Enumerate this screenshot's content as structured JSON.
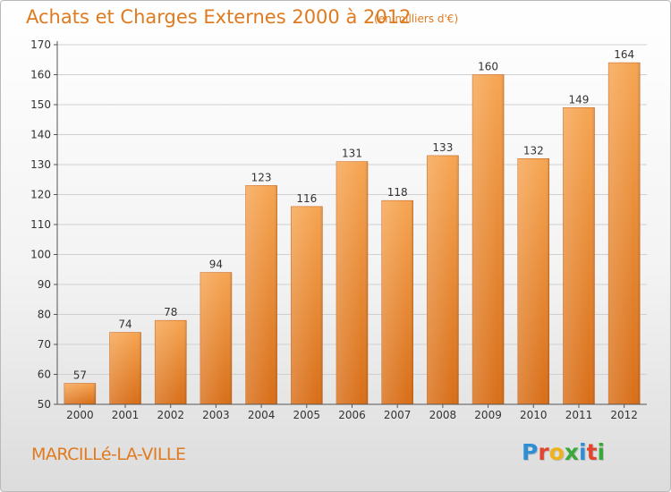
{
  "header": {
    "title": "Achats et Charges Externes 2000 à 2012",
    "subtitle": "(en milliers d'€)"
  },
  "footer": {
    "city": "MARCILLé-LA-VILLE",
    "logo": {
      "text": "Proxiti",
      "letter_colors": [
        "#2e8fd6",
        "#e2452f",
        "#f0b21a",
        "#3aa83a",
        "#2e8fd6",
        "#e2452f",
        "#3aa83a"
      ]
    }
  },
  "colors": {
    "accent": "#e07a1f",
    "bar_top": "#f6a552",
    "bar_bottom": "#d86e18",
    "grid": "#d0d0d0",
    "axis": "#555555"
  },
  "chart_data": {
    "type": "bar",
    "title": "Achats et Charges Externes 2000 à 2012",
    "subtitle": "(en milliers d'€)",
    "xlabel": "",
    "ylabel": "",
    "categories": [
      "2000",
      "2001",
      "2002",
      "2003",
      "2004",
      "2005",
      "2006",
      "2007",
      "2008",
      "2009",
      "2010",
      "2011",
      "2012"
    ],
    "values": [
      57,
      74,
      78,
      94,
      123,
      116,
      131,
      118,
      133,
      160,
      132,
      149,
      164
    ],
    "ylim": [
      50,
      170
    ],
    "yticks": [
      50,
      60,
      70,
      80,
      90,
      100,
      110,
      120,
      130,
      140,
      150,
      160,
      170
    ],
    "grid": true,
    "data_labels": true,
    "legend": "none"
  }
}
